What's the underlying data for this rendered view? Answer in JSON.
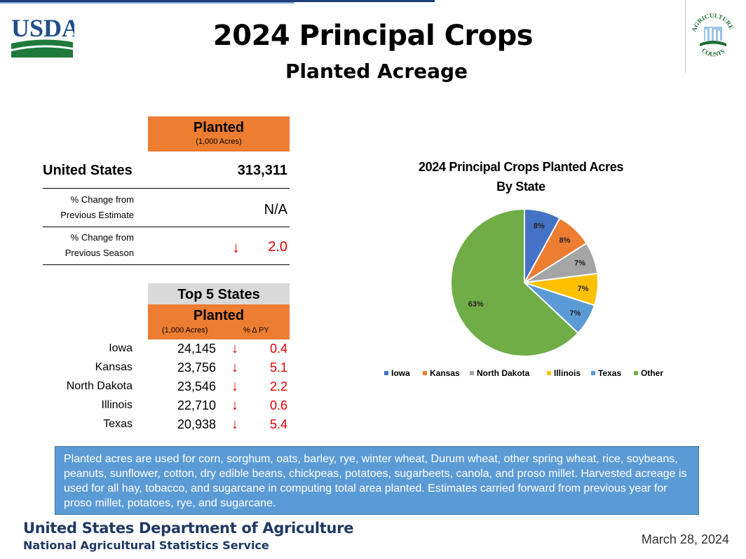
{
  "header": {
    "title": "2024 Principal Crops",
    "subtitle": "Planted Acreage",
    "usda_logo_text": "USDA",
    "ag_logo_text_top": "AGRICULTURE",
    "ag_logo_text_bottom": "COUNTS"
  },
  "summary": {
    "planted_label": "Planted",
    "planted_units": "(1,000 Acres)",
    "us_label": "United States",
    "us_value": "313,311",
    "chg_prev_estimate_label_1": "% Change from",
    "chg_prev_estimate_label_2": "Previous Estimate",
    "chg_prev_estimate_value": "N/A",
    "chg_prev_season_label_1": "% Change from",
    "chg_prev_season_label_2": "Previous Season",
    "chg_prev_season_arrow": "↓",
    "chg_prev_season_value": "2.0"
  },
  "top5": {
    "header": "Top 5 States",
    "planted_label": "Planted",
    "units_label": "(1,000 Acres)",
    "pct_label": "% Δ PY",
    "rows": [
      {
        "state": "Iowa",
        "planted": "24,145",
        "arrow": "↓",
        "change": "0.4"
      },
      {
        "state": "Kansas",
        "planted": "23,756",
        "arrow": "↓",
        "change": "5.1"
      },
      {
        "state": "North Dakota",
        "planted": "23,546",
        "arrow": "↓",
        "change": "2.2"
      },
      {
        "state": "Illinois",
        "planted": "22,710",
        "arrow": "↓",
        "change": "0.6"
      },
      {
        "state": "Texas",
        "planted": "20,938",
        "arrow": "↓",
        "change": "5.4"
      }
    ]
  },
  "chart_data": {
    "type": "pie",
    "title_line1": "2024 Principal Crops Planted Acres",
    "title_line2": "By State",
    "categories": [
      "Iowa",
      "Kansas",
      "North Dakota",
      "Illinois",
      "Texas",
      "Other"
    ],
    "values": [
      8,
      8,
      7,
      7,
      7,
      63
    ],
    "data_labels": [
      "8%",
      "8%",
      "7%",
      "7%",
      "7%",
      "63%"
    ],
    "colors": [
      "#4472c4",
      "#ed7d31",
      "#a5a5a5",
      "#ffc000",
      "#5b9bd5",
      "#70ad47"
    ],
    "legend_position": "bottom"
  },
  "note": "Planted acres are used for corn, sorghum, oats, barley, rye, winter wheat, Durum wheat, other spring wheat, rice, soybeans, peanuts, sunflower, cotton, dry edible beans, chickpeas, potatoes, sugarbeets, canola, and proso millet. Harvested acreage is used for all hay, tobacco, and sugarcane in computing total area planted. Estimates carried forward from previous year for proso millet, potatoes, rye, and sugarcane.",
  "footer": {
    "org_line1": "United States Department of Agriculture",
    "org_line2": "National Agricultural Statistics Service",
    "date": "March 28, 2024"
  }
}
